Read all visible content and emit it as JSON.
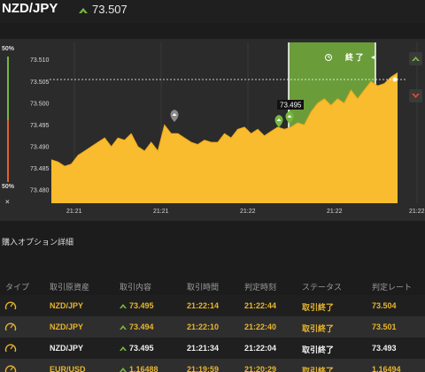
{
  "header": {
    "pair": "NZD/JPY",
    "rate": "73.507",
    "rate_icon": "up-arrow-icon"
  },
  "gauge": {
    "top_label": "50%",
    "bottom_label": "50%",
    "close_label": "×",
    "colors": {
      "up": "#76b83f",
      "down": "#e0612b"
    }
  },
  "chart": {
    "y_ticks": [
      "73.510",
      "73.505",
      "73.500",
      "73.495",
      "73.490",
      "73.485",
      "73.480"
    ],
    "x_ticks": [
      "21:21",
      "21:21",
      "21:22",
      "21:22",
      "21:22"
    ],
    "end_label": "終 了",
    "current_rate_label": "73.495",
    "colors": {
      "area": "#f8bc2e",
      "window": "#6a9d3a",
      "bg": "#2b2b2b"
    }
  },
  "chart_data": {
    "type": "area",
    "ylim": [
      73.477,
      73.514
    ],
    "series": [
      {
        "values": [
          73.487,
          73.4865,
          73.4855,
          73.486,
          73.488,
          73.489,
          73.49,
          73.491,
          73.492,
          73.49,
          73.492,
          73.4915,
          73.493,
          73.49,
          73.489,
          73.491,
          73.489,
          73.495,
          73.493,
          73.493,
          73.492,
          73.491,
          73.4905,
          73.4915,
          73.491,
          73.491,
          73.493,
          73.492,
          73.494,
          73.4945,
          73.493,
          73.494,
          73.4925,
          73.4935,
          73.4945,
          73.494,
          73.4945,
          73.4955,
          73.495,
          73.498,
          73.5,
          73.501,
          73.4995,
          73.501,
          73.5,
          73.503,
          73.501,
          73.503,
          73.505,
          73.504,
          73.5045,
          73.506,
          73.507
        ]
      }
    ]
  },
  "section": {
    "title": "購入オプション詳細"
  },
  "table": {
    "headers": [
      "タイプ",
      "取引原資産",
      "取引内容",
      "取引時間",
      "判定時刻",
      "ステータス",
      "判定レート"
    ],
    "rows": [
      {
        "type_icon": "gauge-icon",
        "pair": "NZD/JPY",
        "entry": "73.495",
        "trade_time": "21:22:14",
        "judge_time": "21:22:44",
        "status": "取引終了",
        "judge_rate": "73.504",
        "rate_icon": "up-arrow-icon"
      },
      {
        "type_icon": "gauge-icon",
        "pair": "NZD/JPY",
        "entry": "73.494",
        "trade_time": "21:22:10",
        "judge_time": "21:22:40",
        "status": "取引終了",
        "judge_rate": "73.501",
        "rate_icon": "up-arrow-icon"
      },
      {
        "type_icon": "gauge-icon",
        "pair": "NZD/JPY",
        "entry": "73.495",
        "trade_time": "21:21:34",
        "judge_time": "21:22:04",
        "status": "取引終了",
        "judge_rate": "73.493",
        "rate_icon": "up-arrow-icon"
      },
      {
        "type_icon": "gauge-icon",
        "pair": "EUR/USD",
        "entry": "1.16488",
        "trade_time": "21:19:59",
        "judge_time": "21:20:29",
        "status": "取引終了",
        "judge_rate": "1.16494",
        "rate_icon": "up-arrow-icon"
      }
    ]
  }
}
